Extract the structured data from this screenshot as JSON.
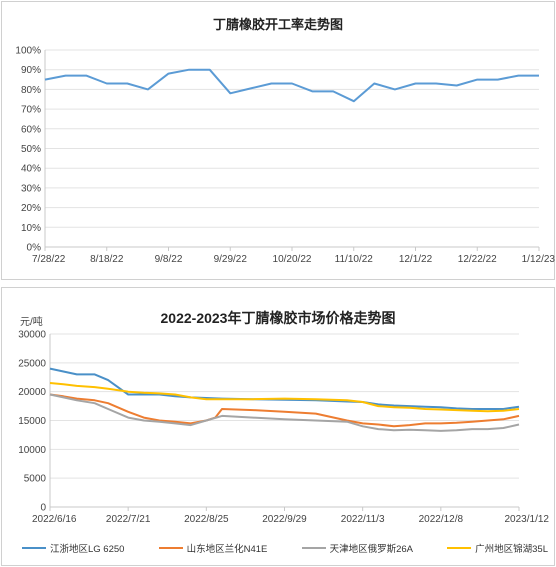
{
  "chart_data": [
    {
      "type": "line",
      "title": "丁腈橡胶开工率走势图",
      "x": [
        "7/28/22",
        "8/4/22",
        "8/11/22",
        "8/18/22",
        "8/25/22",
        "9/1/22",
        "9/8/22",
        "9/15/22",
        "9/22/22",
        "9/29/22",
        "10/6/22",
        "10/13/22",
        "10/20/22",
        "10/27/22",
        "11/3/22",
        "11/10/22",
        "11/17/22",
        "11/24/22",
        "12/1/22",
        "12/8/22",
        "12/15/22",
        "12/22/22",
        "12/29/22",
        "1/5/23",
        "1/12/23"
      ],
      "x_tick_labels": [
        "7/28/22",
        "8/18/22",
        "9/8/22",
        "9/29/22",
        "10/20/22",
        "11/10/22",
        "12/1/22",
        "12/22/22",
        "1/12/23"
      ],
      "series": [
        {
          "color": "#5b9bd5",
          "values": [
            85,
            87,
            87,
            83,
            83,
            80,
            88,
            90,
            90,
            78,
            80.5,
            83,
            83,
            79,
            79,
            74,
            83,
            80,
            83,
            83,
            82,
            85,
            85,
            87,
            87
          ]
        }
      ],
      "ylim": [
        0,
        100
      ],
      "y_tick_labels": [
        "0%",
        "10%",
        "20%",
        "30%",
        "40%",
        "50%",
        "60%",
        "70%",
        "80%",
        "90%",
        "100%"
      ],
      "grid": "horizontal"
    },
    {
      "type": "line",
      "title": "2022-2023年丁腈橡胶市场价格走势图",
      "ylabel": "元/吨",
      "ylim": [
        0,
        30000
      ],
      "y_tick_labels": [
        "0",
        "5000",
        "10000",
        "15000",
        "20000",
        "25000",
        "30000"
      ],
      "x_tick_labels": [
        "2022/6/16",
        "2022/7/21",
        "2022/8/25",
        "2022/9/29",
        "2022/11/3",
        "2022/12/8",
        "2023/1/12"
      ],
      "x_domain": [
        "2022/6/16",
        "2023/1/12"
      ],
      "grid": "horizontal",
      "legend": "bottom",
      "series": [
        {
          "name": "江浙地区LG 6250",
          "color": "#4a90c8",
          "dates": [
            "2022/6/16",
            "2022/6/22",
            "2022/6/28",
            "2022/7/6",
            "2022/7/12",
            "2022/7/21",
            "2022/7/28",
            "2022/8/4",
            "2022/8/11",
            "2022/8/18",
            "2022/8/25",
            "2022/9/1",
            "2022/9/15",
            "2022/9/29",
            "2022/10/13",
            "2022/10/27",
            "2022/11/3",
            "2022/11/10",
            "2022/11/17",
            "2022/11/24",
            "2022/12/1",
            "2022/12/8",
            "2022/12/15",
            "2022/12/22",
            "2022/12/29",
            "2023/1/5",
            "2023/1/12"
          ],
          "values": [
            24000,
            23500,
            23000,
            23000,
            22000,
            19500,
            19500,
            19500,
            19200,
            19000,
            18900,
            18800,
            18700,
            18600,
            18500,
            18300,
            18200,
            17800,
            17600,
            17500,
            17400,
            17300,
            17100,
            17000,
            17000,
            17000,
            17400
          ]
        },
        {
          "name": "山东地区兰化N41E",
          "color": "#ed7d31",
          "dates": [
            "2022/6/16",
            "2022/6/22",
            "2022/6/28",
            "2022/7/6",
            "2022/7/12",
            "2022/7/21",
            "2022/7/28",
            "2022/8/4",
            "2022/8/11",
            "2022/8/18",
            "2022/8/25",
            "2022/8/29",
            "2022/9/1",
            "2022/9/15",
            "2022/9/29",
            "2022/10/13",
            "2022/10/27",
            "2022/11/3",
            "2022/11/10",
            "2022/11/17",
            "2022/11/24",
            "2022/12/1",
            "2022/12/8",
            "2022/12/15",
            "2022/12/22",
            "2022/12/29",
            "2023/1/5",
            "2023/1/12"
          ],
          "values": [
            19500,
            19200,
            18800,
            18500,
            18000,
            16500,
            15500,
            15000,
            14800,
            14500,
            15000,
            15500,
            17000,
            16800,
            16500,
            16200,
            15000,
            14500,
            14300,
            14000,
            14200,
            14500,
            14500,
            14600,
            14800,
            15000,
            15200,
            15800
          ]
        },
        {
          "name": "天津地区俄罗斯26A",
          "color": "#a5a5a5",
          "dates": [
            "2022/6/16",
            "2022/6/22",
            "2022/6/28",
            "2022/7/6",
            "2022/7/12",
            "2022/7/21",
            "2022/7/28",
            "2022/8/4",
            "2022/8/11",
            "2022/8/18",
            "2022/8/25",
            "2022/9/1",
            "2022/9/15",
            "2022/9/29",
            "2022/10/13",
            "2022/10/27",
            "2022/11/3",
            "2022/11/10",
            "2022/11/17",
            "2022/11/24",
            "2022/12/1",
            "2022/12/8",
            "2022/12/15",
            "2022/12/22",
            "2022/12/29",
            "2023/1/5",
            "2023/1/12"
          ],
          "values": [
            19500,
            19000,
            18500,
            18000,
            17000,
            15500,
            15000,
            14800,
            14500,
            14200,
            15000,
            15800,
            15500,
            15200,
            15000,
            14800,
            14000,
            13500,
            13300,
            13400,
            13300,
            13200,
            13300,
            13500,
            13500,
            13700,
            14300
          ]
        },
        {
          "name": "广州地区锦湖35L",
          "color": "#ffc000",
          "dates": [
            "2022/6/16",
            "2022/6/22",
            "2022/6/28",
            "2022/7/6",
            "2022/7/12",
            "2022/7/21",
            "2022/7/28",
            "2022/8/4",
            "2022/8/11",
            "2022/8/18",
            "2022/8/25",
            "2022/9/1",
            "2022/9/15",
            "2022/9/29",
            "2022/10/13",
            "2022/10/27",
            "2022/11/3",
            "2022/11/10",
            "2022/11/17",
            "2022/11/24",
            "2022/12/1",
            "2022/12/8",
            "2022/12/15",
            "2022/12/22",
            "2022/12/29",
            "2023/1/5",
            "2023/1/12"
          ],
          "values": [
            21500,
            21300,
            21000,
            20800,
            20500,
            20000,
            19800,
            19700,
            19500,
            19000,
            18700,
            18700,
            18700,
            18800,
            18700,
            18500,
            18200,
            17500,
            17300,
            17200,
            17000,
            16900,
            16800,
            16700,
            16600,
            16700,
            17000
          ]
        }
      ]
    }
  ]
}
